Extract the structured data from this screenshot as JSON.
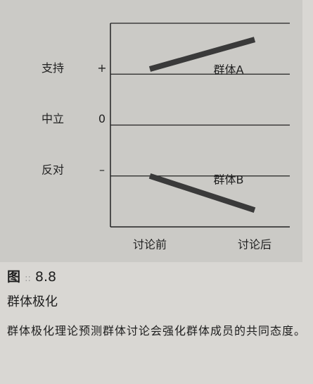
{
  "chart_data": {
    "type": "line",
    "categories": [
      "讨论前",
      "讨论后"
    ],
    "series": [
      {
        "name": "群体A",
        "color": "#3a3a3a",
        "values": [
          1.1,
          1.68
        ]
      },
      {
        "name": "群体B",
        "color": "#3a3a3a",
        "values": [
          -1.0,
          -1.67
        ]
      }
    ],
    "ylim": [
      -2,
      2
    ],
    "yticks": [
      {
        "value": 1,
        "label": "+"
      },
      {
        "value": 0,
        "label": "0"
      },
      {
        "value": -1,
        "label": "–"
      }
    ],
    "ytick_names": [
      "支持",
      "中立",
      "反对"
    ],
    "grid": true
  },
  "caption": {
    "figure_label": "图",
    "figure_marks": "::",
    "figure_number": "8.8",
    "title": "群体极化",
    "text": "群体极化理论预测群体讨论会强化群体成员的共同态度。"
  }
}
